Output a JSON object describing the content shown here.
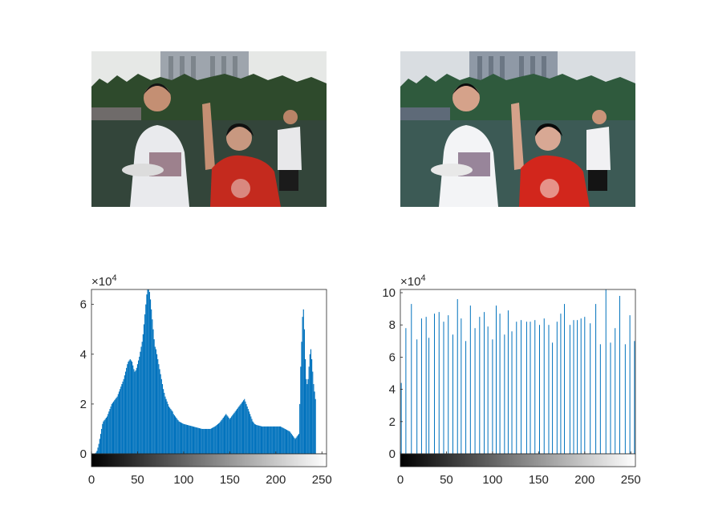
{
  "figure": {
    "images": [
      {
        "name": "original-photo",
        "scene": [
          "building",
          "trees",
          "field",
          "three-people",
          "frisbee"
        ]
      },
      {
        "name": "equalized-photo",
        "scene": [
          "building",
          "trees",
          "field",
          "three-people",
          "frisbee"
        ]
      }
    ]
  },
  "colors": {
    "bar": "#0072BD",
    "axis": "#262626",
    "background": "#ffffff"
  },
  "chart_data": [
    {
      "type": "bar",
      "title": "",
      "xlabel": "",
      "ylabel": "",
      "xlim": [
        0,
        255
      ],
      "ylim": [
        0,
        66000
      ],
      "exponent_label": "×10",
      "exponent_power": "4",
      "xticks": [
        "0",
        "50",
        "100",
        "150",
        "200",
        "250"
      ],
      "xtick_values": [
        0,
        50,
        100,
        150,
        200,
        250
      ],
      "yticks": [
        "0",
        "2",
        "4",
        "6"
      ],
      "ytick_values": [
        0,
        20000,
        40000,
        60000
      ],
      "grid": false,
      "colorbar": "grayscale",
      "series": [
        {
          "x_start": 0,
          "values": [
            0,
            0,
            0,
            0,
            200,
            500,
            1200,
            2500,
            4000,
            6000,
            8000,
            10000,
            12000,
            13000,
            13500,
            14000,
            14500,
            15000,
            16000,
            17000,
            18000,
            19000,
            20000,
            20500,
            21000,
            21500,
            22000,
            22500,
            23000,
            24000,
            25000,
            26000,
            27000,
            28000,
            29000,
            30000,
            31500,
            33000,
            34500,
            36000,
            37000,
            37500,
            38000,
            37500,
            37000,
            35500,
            34000,
            33000,
            33500,
            34500,
            36000,
            37500,
            39000,
            41000,
            43000,
            45000,
            48000,
            52000,
            56000,
            60000,
            64000,
            66000,
            66000,
            65000,
            62000,
            58000,
            54000,
            50000,
            46000,
            43000,
            42000,
            40000,
            38000,
            36000,
            34000,
            32000,
            30000,
            28000,
            26000,
            24500,
            23000,
            22000,
            21000,
            20000,
            19000,
            18500,
            18000,
            17500,
            17000,
            16000,
            15500,
            15000,
            14500,
            14000,
            13500,
            13000,
            12800,
            12600,
            12400,
            12200,
            12000,
            11900,
            11800,
            11700,
            11600,
            11500,
            11400,
            11300,
            11200,
            11100,
            11000,
            10900,
            10800,
            10700,
            10600,
            10500,
            10400,
            10300,
            10200,
            10100,
            10000,
            10000,
            10000,
            10000,
            10000,
            10000,
            10000,
            10000,
            10000,
            10000,
            10200,
            10400,
            10600,
            10800,
            11000,
            11300,
            11600,
            11900,
            12200,
            12500,
            13000,
            13500,
            14000,
            14500,
            15000,
            15500,
            16000,
            15500,
            15000,
            14500,
            14000,
            14500,
            15000,
            15500,
            16000,
            16500,
            17000,
            17500,
            18000,
            18500,
            19000,
            19500,
            20000,
            20500,
            21000,
            21500,
            22000,
            21000,
            20000,
            19000,
            18000,
            17000,
            16000,
            15000,
            14000,
            13000,
            12500,
            12000,
            11800,
            11600,
            11500,
            11400,
            11300,
            11200,
            11100,
            11000,
            11000,
            11000,
            11000,
            11000,
            11000,
            11000,
            11000,
            11000,
            11000,
            11000,
            11000,
            11000,
            11000,
            11000,
            11000,
            11000,
            11000,
            11000,
            11000,
            11000,
            10800,
            10600,
            10400,
            10200,
            10000,
            9800,
            9600,
            9400,
            9200,
            9000,
            8500,
            8000,
            7500,
            7000,
            6500,
            6000,
            6500,
            7000,
            7500,
            8000,
            20000,
            35000,
            45000,
            55000,
            58000,
            50000,
            38000,
            30000,
            28000,
            30000,
            35000,
            40000,
            42000,
            38000,
            33000,
            28000,
            25000,
            22000,
            0,
            0,
            0,
            0,
            0,
            0,
            0,
            0,
            0,
            0,
            0,
            0,
            0,
            0
          ]
        }
      ]
    },
    {
      "type": "bar",
      "title": "",
      "xlabel": "",
      "ylabel": "",
      "xlim": [
        0,
        255
      ],
      "ylim": [
        0,
        102000
      ],
      "exponent_label": "×10",
      "exponent_power": "4",
      "xticks": [
        "0",
        "50",
        "100",
        "150",
        "200",
        "250"
      ],
      "xtick_values": [
        0,
        50,
        100,
        150,
        200,
        250
      ],
      "yticks": [
        "0",
        "2",
        "4",
        "6",
        "8",
        "10"
      ],
      "ytick_values": [
        0,
        20000,
        40000,
        60000,
        80000,
        100000
      ],
      "grid": false,
      "colorbar": "grayscale",
      "series": [
        {
          "x": [
            1,
            6,
            12,
            18,
            23,
            28,
            31,
            37,
            42,
            47,
            52,
            57,
            62,
            66,
            71,
            76,
            81,
            86,
            91,
            95,
            100,
            104,
            108,
            113,
            117,
            121,
            126,
            131,
            137,
            141,
            146,
            151,
            156,
            161,
            165,
            170,
            174,
            178,
            184,
            188,
            192,
            196,
            200,
            206,
            212,
            217,
            223,
            228,
            233,
            238,
            244,
            249,
            254
          ],
          "values": [
            44000,
            78000,
            93000,
            71000,
            84000,
            85000,
            72000,
            87000,
            88000,
            82000,
            86000,
            74000,
            96000,
            84000,
            70000,
            92000,
            78000,
            85000,
            88000,
            79000,
            71000,
            92000,
            87000,
            74000,
            89000,
            76000,
            82000,
            83000,
            82000,
            82000,
            83000,
            80000,
            84000,
            80000,
            69000,
            82000,
            87000,
            93000,
            80000,
            83000,
            83000,
            84000,
            85000,
            81000,
            93000,
            68000,
            102000,
            69000,
            78000,
            98000,
            68000,
            86000,
            70000
          ]
        }
      ]
    }
  ]
}
